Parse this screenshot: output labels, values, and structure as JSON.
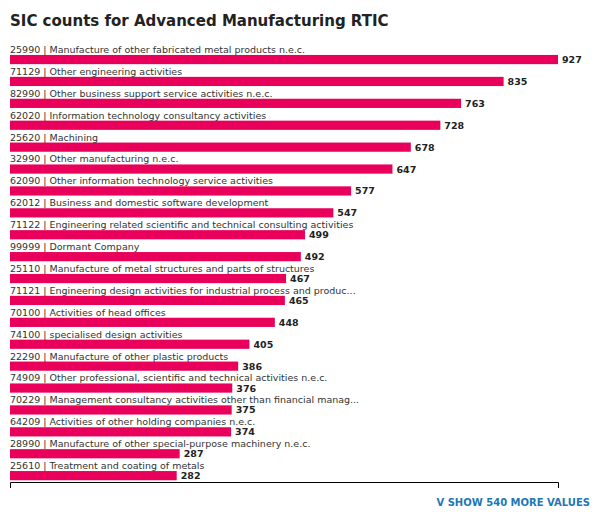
{
  "chart_data": {
    "type": "bar",
    "orientation": "horizontal",
    "title": "SIC counts for Advanced Manufacturing RTIC",
    "categories": [
      "25990 | Manufacture of other fabricated metal products n.e.c.",
      "71129 | Other engineering activities",
      "82990 | Other business support service activities n.e.c.",
      "62020 | Information technology consultancy activities",
      "25620 | Machining",
      "32990 | Other manufacturing n.e.c.",
      "62090 | Other information technology service activities",
      "62012 | Business and domestic software development",
      "71122 | Engineering related scientific and technical consulting activities",
      "99999 | Dormant Company",
      "25110 | Manufacture of metal structures and parts of structures",
      "71121 | Engineering design activities for industrial process and produc...",
      "70100 | Activities of head offices",
      "74100 | specialised design activities",
      "22290 | Manufacture of other plastic products",
      "74909 | Other professional, scientific and technical activities n.e.c.",
      "70229 | Management consultancy activities other than financial manag...",
      "64209 | Activities of other holding companies n.e.c.",
      "28990 | Manufacture of other special-purpose machinery n.e.c.",
      "25610 | Treatment and coating of metals"
    ],
    "values": [
      927,
      835,
      763,
      728,
      678,
      647,
      577,
      547,
      499,
      492,
      467,
      465,
      448,
      405,
      386,
      376,
      375,
      374,
      287,
      282
    ],
    "color": "#e8005a",
    "xlim": [
      0,
      927
    ],
    "tick_labels": false,
    "data_labels": true,
    "grid": false,
    "annotations": [
      "V  SHOW 540 MORE VALUES"
    ]
  }
}
